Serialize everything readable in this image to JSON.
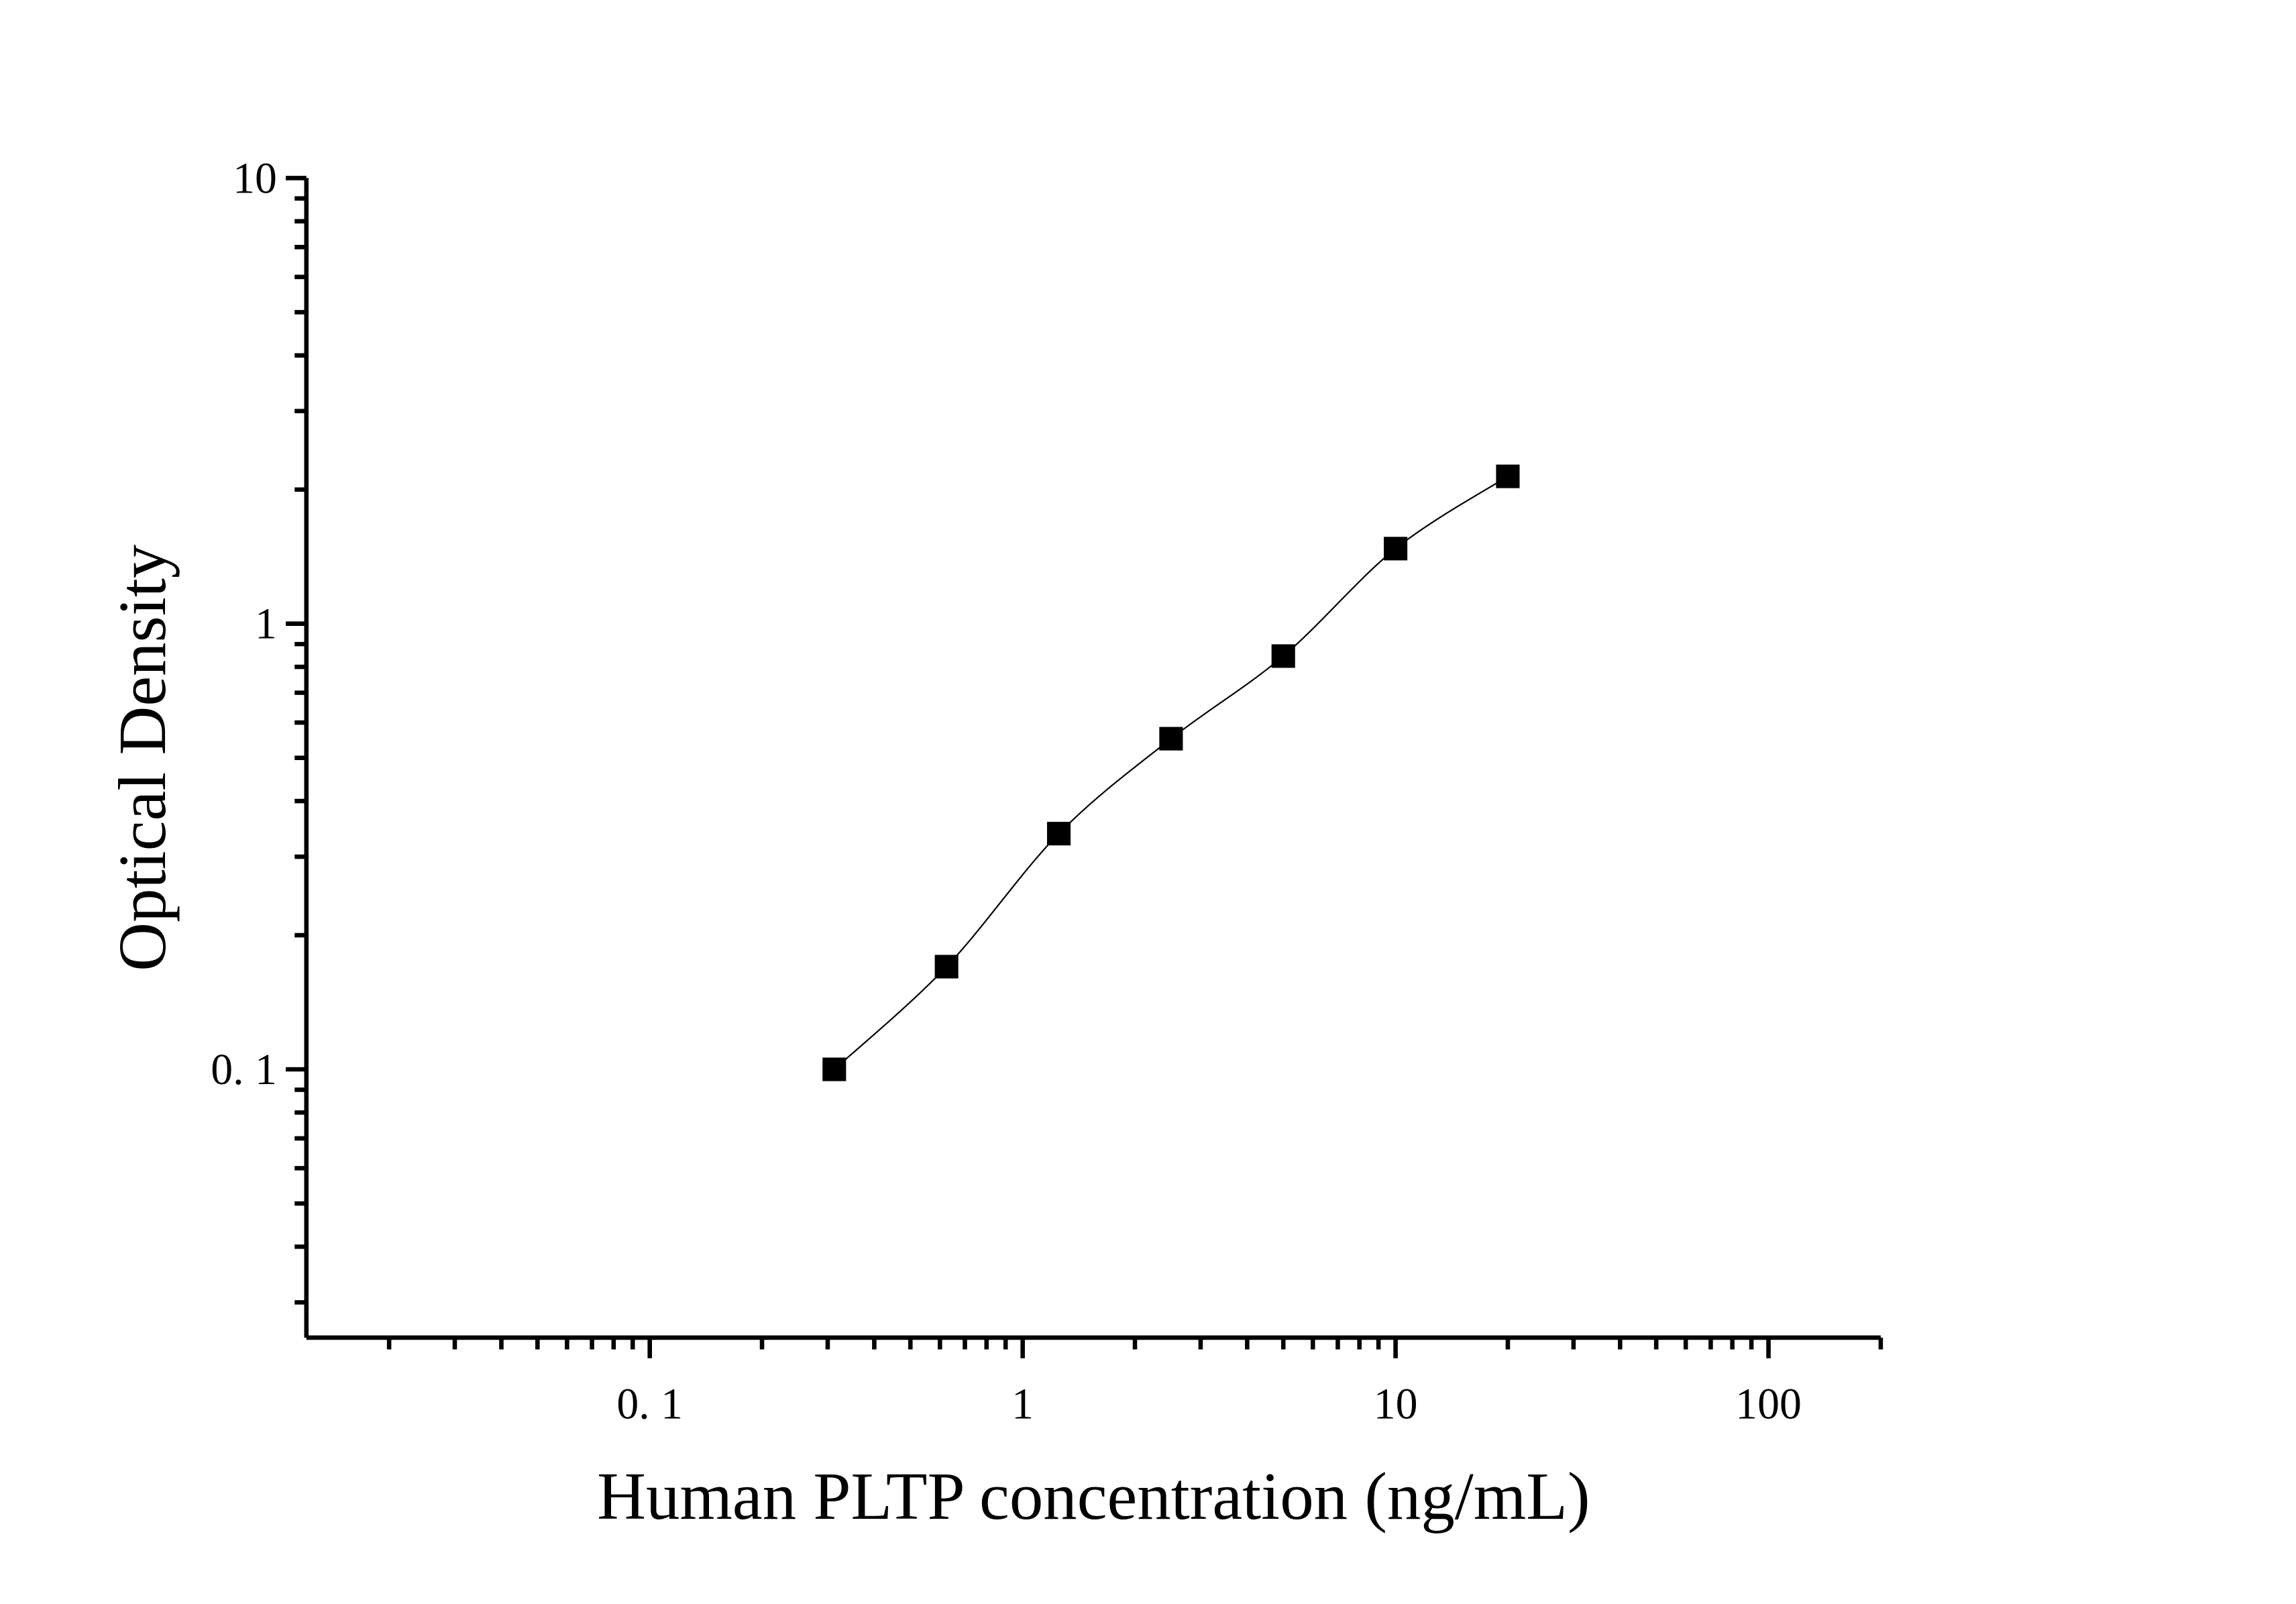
{
  "chart_data": {
    "type": "scatter",
    "title": "",
    "xlabel": "Human PLTP concentration (ng/mL)",
    "ylabel": "Optical Density",
    "x_scale": "log",
    "y_scale": "log",
    "xlim": [
      0.012,
      200
    ],
    "ylim": [
      0.025,
      10
    ],
    "x_ticks": [
      {
        "value": 0.1,
        "label": "0. 1"
      },
      {
        "value": 1,
        "label": "1"
      },
      {
        "value": 10,
        "label": "10"
      },
      {
        "value": 100,
        "label": "100"
      }
    ],
    "y_ticks": [
      {
        "value": 0.1,
        "label": "0. 1"
      },
      {
        "value": 1,
        "label": "1"
      },
      {
        "value": 10,
        "label": "10"
      }
    ],
    "grid": false,
    "legend": "none",
    "marker": "square",
    "marker_color": "#000000",
    "line_color": "#000000",
    "fit_curve": true,
    "series": [
      {
        "x": [
          0.3125,
          0.625,
          1.25,
          2.5,
          5,
          10,
          20
        ],
        "y": [
          0.1,
          0.17,
          0.338,
          0.552,
          0.846,
          1.474,
          2.141
        ]
      }
    ]
  }
}
